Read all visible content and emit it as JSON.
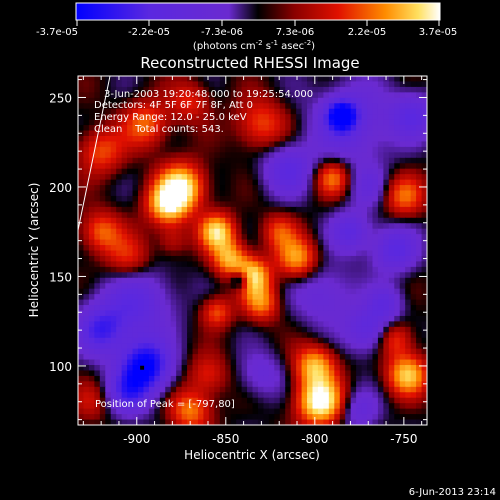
{
  "colorbar": {
    "tick_labels": [
      "-3.7e-05",
      "-2.2e-05",
      "-7.3e-06",
      "7.3e-06",
      "2.2e-05",
      "3.7e-05"
    ],
    "units_label": "(photons cm",
    "units_sup1": "-2",
    "units_mid1": " s",
    "units_sup2": "-1",
    "units_mid2": " asec",
    "units_sup3": "-2",
    "units_end": ")"
  },
  "annotations": {
    "time_range": "3-Jun-2003 19:20:48.000 to 19:25:54.000",
    "detectors": "Detectors: 4F 5F 6F 7F 8F, Att 0",
    "energy_range": "Energy Range: 12.0 - 25.0 keV",
    "method_counts": "Clean    Total counts: 543.",
    "peak_position": "Position of Peak = [-797,80]"
  },
  "footer": {
    "timestamp": "6-Jun-2013 23:14"
  },
  "colors": {
    "background": "#000000",
    "axes": "#ffffff",
    "colormap": [
      "#0000ff",
      "#6a2ad0",
      "#6a2ad0",
      "#000000",
      "#8a0000",
      "#e01000",
      "#ff8c00",
      "#ffe060",
      "#ffffff"
    ]
  },
  "chart_data": {
    "type": "heatmap",
    "title": "Reconstructed RHESSI Image",
    "xlabel": "Heliocentric X (arcsec)",
    "ylabel": "Heliocentric Y (arcsec)",
    "x_ticks": [
      -900,
      -850,
      -800,
      -750
    ],
    "x_tick_labels": [
      "-900",
      "-850",
      "-800",
      "-750"
    ],
    "y_ticks": [
      100,
      150,
      200,
      250
    ],
    "y_tick_labels": [
      "100",
      "150",
      "200",
      "250"
    ],
    "xlim": [
      -933,
      -737
    ],
    "ylim": [
      67,
      262
    ],
    "colorbar_range": [
      -3.7e-05,
      3.7e-05
    ],
    "peak": [
      -797,
      80
    ],
    "sources": [
      {
        "x": -895,
        "y": 235,
        "v": 0.5,
        "s": 9
      },
      {
        "x": -870,
        "y": 248,
        "v": 0.35,
        "s": 8
      },
      {
        "x": -830,
        "y": 235,
        "v": 0.45,
        "s": 10
      },
      {
        "x": -780,
        "y": 235,
        "v": -0.45,
        "s": 16
      },
      {
        "x": -785,
        "y": 240,
        "v": -0.85,
        "s": 6
      },
      {
        "x": -745,
        "y": 240,
        "v": -0.5,
        "s": 9
      },
      {
        "x": -920,
        "y": 220,
        "v": 0.45,
        "s": 9
      },
      {
        "x": -875,
        "y": 200,
        "v": 0.9,
        "s": 9
      },
      {
        "x": -883,
        "y": 190,
        "v": 0.75,
        "s": 8
      },
      {
        "x": -905,
        "y": 160,
        "v": 0.4,
        "s": 9
      },
      {
        "x": -920,
        "y": 175,
        "v": 0.5,
        "s": 8
      },
      {
        "x": -900,
        "y": 135,
        "v": -0.5,
        "s": 14
      },
      {
        "x": -895,
        "y": 100,
        "v": -0.95,
        "s": 10
      },
      {
        "x": -920,
        "y": 120,
        "v": -0.6,
        "s": 10
      },
      {
        "x": -855,
        "y": 175,
        "v": 0.8,
        "s": 7
      },
      {
        "x": -848,
        "y": 160,
        "v": 0.65,
        "s": 7
      },
      {
        "x": -835,
        "y": 150,
        "v": 0.8,
        "s": 7
      },
      {
        "x": -830,
        "y": 135,
        "v": 0.55,
        "s": 7
      },
      {
        "x": -855,
        "y": 130,
        "v": 0.45,
        "s": 6
      },
      {
        "x": -810,
        "y": 160,
        "v": 0.65,
        "s": 8
      },
      {
        "x": -820,
        "y": 175,
        "v": 0.4,
        "s": 7
      },
      {
        "x": -815,
        "y": 210,
        "v": -0.5,
        "s": 10
      },
      {
        "x": -790,
        "y": 205,
        "v": 0.55,
        "s": 7
      },
      {
        "x": -770,
        "y": 200,
        "v": -0.3,
        "s": 8
      },
      {
        "x": -750,
        "y": 195,
        "v": 0.5,
        "s": 8
      },
      {
        "x": -755,
        "y": 165,
        "v": -0.55,
        "s": 9
      },
      {
        "x": -780,
        "y": 175,
        "v": -0.5,
        "s": 8
      },
      {
        "x": -795,
        "y": 140,
        "v": -0.35,
        "s": 12
      },
      {
        "x": -770,
        "y": 120,
        "v": -0.5,
        "s": 9
      },
      {
        "x": -797,
        "y": 80,
        "v": 1.0,
        "s": 9
      },
      {
        "x": -800,
        "y": 100,
        "v": 0.7,
        "s": 8
      },
      {
        "x": -748,
        "y": 95,
        "v": 0.75,
        "s": 8
      },
      {
        "x": -755,
        "y": 115,
        "v": 0.45,
        "s": 7
      },
      {
        "x": -830,
        "y": 95,
        "v": -0.3,
        "s": 9
      },
      {
        "x": -860,
        "y": 95,
        "v": 0.35,
        "s": 8
      },
      {
        "x": -870,
        "y": 75,
        "v": 0.55,
        "s": 8
      },
      {
        "x": -925,
        "y": 80,
        "v": 0.25,
        "s": 8
      },
      {
        "x": -775,
        "y": 75,
        "v": -0.35,
        "s": 8
      },
      {
        "x": -905,
        "y": 85,
        "v": -0.55,
        "s": 9
      },
      {
        "x": -842,
        "y": 148,
        "v": -0.6,
        "s": 4
      },
      {
        "x": -880,
        "y": 170,
        "v": 0.25,
        "s": 6
      },
      {
        "x": -760,
        "y": 135,
        "v": -0.4,
        "s": 7
      }
    ]
  }
}
